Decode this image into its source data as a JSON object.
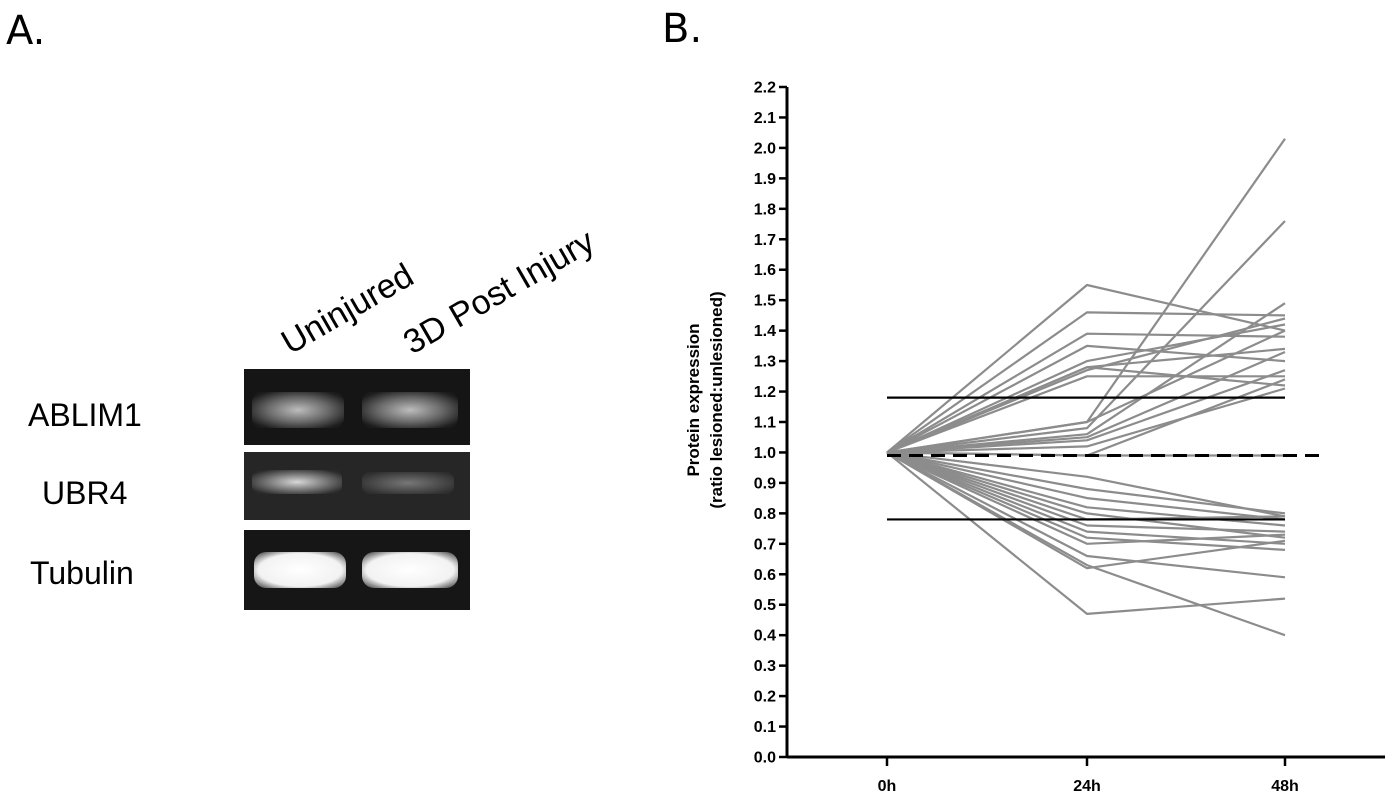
{
  "panel_a": {
    "letter": "A.",
    "lanes": [
      "Uninjured",
      "3D Post Injury"
    ],
    "blots": [
      "ABLIM1",
      "UBR4",
      "Tubulin"
    ]
  },
  "panel_b": {
    "letter": "B."
  },
  "chart_data": {
    "type": "line",
    "title": "",
    "xlabel": "",
    "ylabel": "Protein expression (ratio lesioned:unlesioned)",
    "ylabel_lines": [
      "Protein expression",
      "(ratio lesioned:unlesioned)"
    ],
    "categories": [
      "0h",
      "24h",
      "48h"
    ],
    "ylim": [
      0.0,
      2.2
    ],
    "yticks": [
      "0.0",
      "0.1",
      "0.2",
      "0.3",
      "0.4",
      "0.5",
      "0.6",
      "0.7",
      "0.8",
      "0.9",
      "1.0",
      "1.1",
      "1.2",
      "1.3",
      "1.4",
      "1.5",
      "1.6",
      "1.7",
      "1.8",
      "1.9",
      "2.0",
      "2.1",
      "2.2"
    ],
    "grid": false,
    "series_color": "#8c8c8c",
    "series": [
      {
        "values": [
          1.0,
          1.55,
          1.4
        ]
      },
      {
        "values": [
          1.0,
          1.46,
          1.45
        ]
      },
      {
        "values": [
          1.0,
          1.39,
          1.38
        ]
      },
      {
        "values": [
          1.0,
          1.35,
          1.3
        ]
      },
      {
        "values": [
          1.0,
          1.3,
          1.42
        ]
      },
      {
        "values": [
          1.0,
          1.28,
          1.34
        ]
      },
      {
        "values": [
          1.0,
          1.27,
          1.44
        ]
      },
      {
        "values": [
          1.0,
          1.25,
          1.25
        ]
      },
      {
        "values": [
          1.0,
          1.28,
          1.22
        ]
      },
      {
        "values": [
          1.0,
          1.1,
          2.03
        ]
      },
      {
        "values": [
          1.0,
          1.08,
          1.76
        ]
      },
      {
        "values": [
          1.0,
          1.06,
          1.49
        ]
      },
      {
        "values": [
          1.0,
          1.05,
          1.33
        ]
      },
      {
        "values": [
          1.0,
          1.04,
          1.27
        ]
      },
      {
        "values": [
          1.0,
          1.1,
          1.4
        ]
      },
      {
        "values": [
          1.0,
          1.02,
          1.21
        ]
      },
      {
        "values": [
          1.0,
          0.99,
          1.24
        ]
      },
      {
        "values": [
          1.0,
          0.99,
          0.99
        ]
      },
      {
        "values": [
          1.0,
          0.92,
          0.79
        ]
      },
      {
        "values": [
          1.0,
          0.88,
          0.8
        ]
      },
      {
        "values": [
          1.0,
          0.85,
          0.78
        ]
      },
      {
        "values": [
          1.0,
          0.82,
          0.76
        ]
      },
      {
        "values": [
          1.0,
          0.8,
          0.72
        ]
      },
      {
        "values": [
          1.0,
          0.78,
          0.79
        ]
      },
      {
        "values": [
          1.0,
          0.76,
          0.74
        ]
      },
      {
        "values": [
          1.0,
          0.74,
          0.7
        ]
      },
      {
        "values": [
          1.0,
          0.72,
          0.68
        ]
      },
      {
        "values": [
          1.0,
          0.7,
          0.73
        ]
      },
      {
        "values": [
          1.0,
          0.66,
          0.59
        ]
      },
      {
        "values": [
          1.0,
          0.63,
          0.4
        ]
      },
      {
        "values": [
          1.0,
          0.62,
          0.71
        ]
      },
      {
        "values": [
          1.0,
          0.47,
          0.52
        ]
      }
    ],
    "reference_lines": [
      {
        "y": 1.18,
        "style": "solid",
        "x_from": 0,
        "x_to": 2
      },
      {
        "y": 0.99,
        "style": "dashed",
        "x_from": 0,
        "x_to": 2.2
      },
      {
        "y": 0.78,
        "style": "solid",
        "x_from": 0,
        "x_to": 2
      }
    ]
  }
}
